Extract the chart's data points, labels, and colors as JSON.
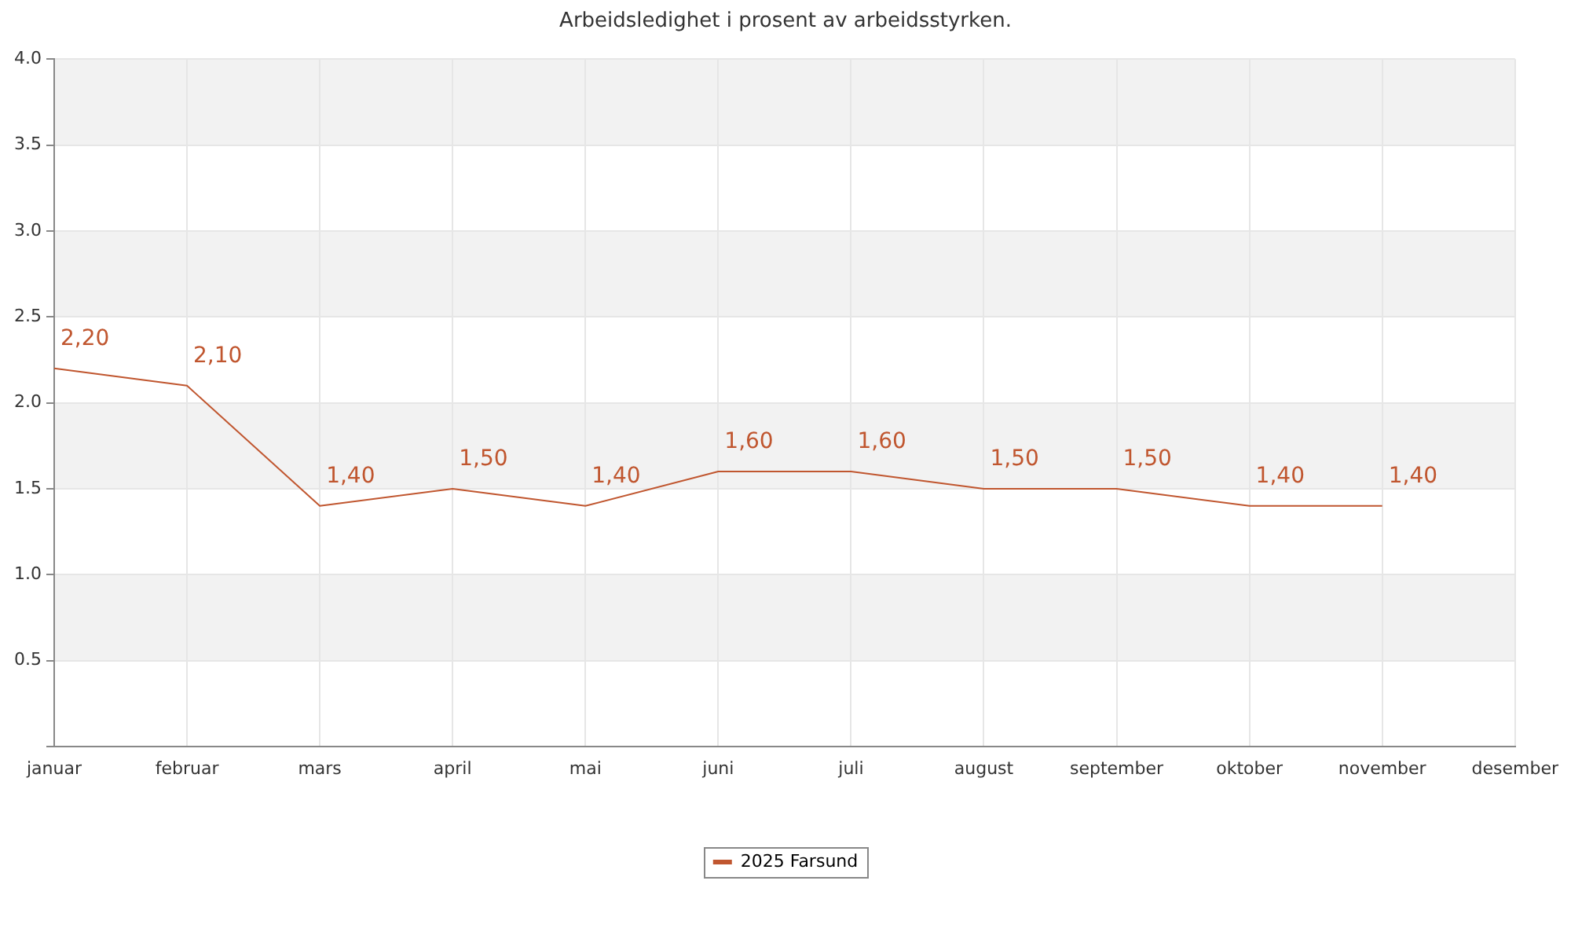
{
  "chart_data": {
    "type": "line",
    "title": "Arbeidsledighet i prosent av arbeidsstyrken.",
    "categories": [
      "januar",
      "februar",
      "mars",
      "april",
      "mai",
      "juni",
      "juli",
      "august",
      "september",
      "oktober",
      "november",
      "desember"
    ],
    "series": [
      {
        "name": "2025 Farsund",
        "color": "#c0562f",
        "values": [
          2.2,
          2.1,
          1.4,
          1.5,
          1.4,
          1.6,
          1.6,
          1.5,
          1.5,
          1.4,
          1.4,
          null
        ],
        "value_labels": [
          "2,20",
          "2,10",
          "1,40",
          "1,50",
          "1,40",
          "1,60",
          "1,60",
          "1,50",
          "1,50",
          "1,40",
          "1,40",
          null
        ]
      }
    ],
    "ylim": [
      0,
      4
    ],
    "yticks": [
      {
        "value": 0,
        "label": null
      },
      0.5,
      {
        "value": 1,
        "label": "1.0"
      },
      1.5,
      {
        "value": 2,
        "label": "2.0"
      },
      2.5,
      {
        "value": 3,
        "label": "3.0"
      },
      3.5,
      {
        "value": 4,
        "label": "4.0"
      }
    ],
    "bands": [
      {
        "axis": "y",
        "from": 0.5,
        "to": 1,
        "color": "#f2f2f2"
      },
      {
        "axis": "y",
        "from": 1.5,
        "to": 2,
        "color": "#f2f2f2"
      },
      {
        "axis": "y",
        "from": 2.5,
        "to": 3,
        "color": "#f2f2f2"
      },
      {
        "axis": "y",
        "from": 3.5,
        "to": 4,
        "color": "#f2f2f2"
      }
    ],
    "grid": true,
    "legend": "bottom",
    "marker": "none",
    "line_style": "solid"
  }
}
